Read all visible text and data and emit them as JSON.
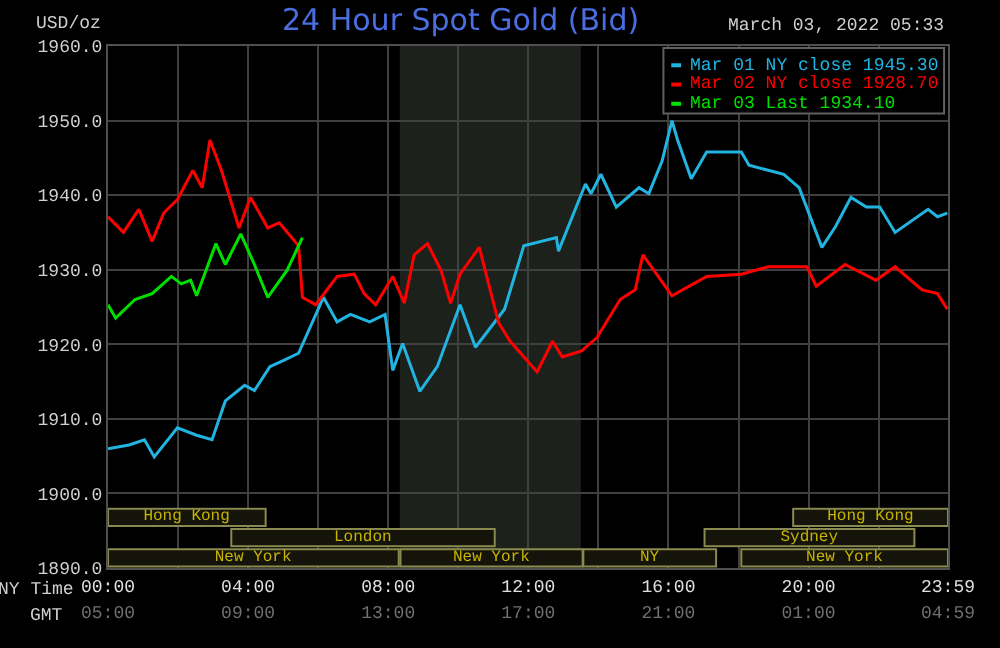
{
  "chart_data": [
    {
      "type": "line",
      "title": "24 Hour Spot Gold (Bid)",
      "subtitle": "March 03, 2022 05:33",
      "ylabel": "USD/oz",
      "xlabel": "NY Time",
      "x2label": "GMT",
      "xlim": [
        0,
        23.98
      ],
      "ylim": [
        1890,
        1960
      ],
      "xticks": [
        {
          "value": 0,
          "label": "00:00"
        },
        {
          "value": 2,
          "label": null
        },
        {
          "value": 4,
          "label": "04:00"
        },
        {
          "value": 6,
          "label": null
        },
        {
          "value": 8,
          "label": "08:00"
        },
        {
          "value": 10,
          "label": null
        },
        {
          "value": 12,
          "label": "12:00"
        },
        {
          "value": 14,
          "label": null
        },
        {
          "value": 16,
          "label": "16:00"
        },
        {
          "value": 18,
          "label": null
        },
        {
          "value": 20,
          "label": "20:00"
        },
        {
          "value": 22,
          "label": null
        },
        {
          "value": 23.98,
          "label": "23:59"
        }
      ],
      "x2lim": [
        "2022-03-03T05:00",
        "2022-03-04T04:59"
      ],
      "x2ticks": [
        {
          "value": "2022-03-03T05:00",
          "label": "05:00"
        },
        {
          "value": "2022-03-03T09:00",
          "label": "09:00"
        },
        {
          "value": "2022-03-03T13:00",
          "label": "13:00"
        },
        {
          "value": "2022-03-03T17:00",
          "label": "17:00"
        },
        {
          "value": "2022-03-03T21:00",
          "label": "21:00"
        },
        {
          "value": "2022-03-04T01:00",
          "label": "01:00"
        },
        {
          "value": "2022-03-04T04:59",
          "label": "04:59"
        }
      ],
      "yticks": [
        {
          "value": 1890,
          "label": "1890.0"
        },
        {
          "value": 1900,
          "label": "1900.0"
        },
        {
          "value": 1910,
          "label": "1910.0"
        },
        {
          "value": 1920,
          "label": "1920.0"
        },
        {
          "value": 1930,
          "label": "1930.0"
        },
        {
          "value": 1940,
          "label": "1940.0"
        },
        {
          "value": 1950,
          "label": "1950.0"
        },
        {
          "value": 1960,
          "label": "1960.0"
        }
      ],
      "grid": true,
      "legend": "top right",
      "marker": "none",
      "line_style": "solid",
      "bands": [
        {
          "axis": "x",
          "from": 8.33,
          "to": 13.5,
          "color": "#1c211c"
        }
      ],
      "series": [
        {
          "name": "Mar 01 NY close 1945.30",
          "color": "#22b4e0",
          "x": [
            0,
            0.6,
            1.04,
            1.32,
            1.98,
            2.53,
            2.97,
            3.35,
            3.9,
            4.18,
            4.62,
            5.0,
            5.44,
            6.15,
            6.54,
            6.92,
            7.47,
            7.91,
            8.13,
            8.41,
            8.9,
            9.4,
            10.05,
            10.49,
            11.32,
            11.87,
            12.8,
            12.86,
            13.63,
            13.79,
            14.07,
            14.51,
            15.16,
            15.44,
            15.82,
            16.1,
            16.26,
            16.65,
            17.09,
            18.08,
            18.3,
            19.29,
            19.73,
            20.38,
            20.77,
            21.21,
            21.65,
            22.03,
            22.47,
            23.41,
            23.68,
            23.96
          ],
          "values": [
            1906.0,
            1906.5,
            1907.2,
            1904.9,
            1908.8,
            1907.8,
            1907.2,
            1912.4,
            1914.5,
            1913.8,
            1917.0,
            1917.8,
            1918.8,
            1926.3,
            1923.0,
            1924.0,
            1923.0,
            1924.0,
            1916.5,
            1920.1,
            1913.7,
            1917.0,
            1925.3,
            1919.6,
            1924.7,
            1933.2,
            1934.3,
            1932.5,
            1941.5,
            1940.2,
            1942.8,
            1938.4,
            1941.0,
            1940.2,
            1944.6,
            1950.0,
            1947.4,
            1942.2,
            1945.8,
            1945.8,
            1944.0,
            1942.8,
            1941.0,
            1933.0,
            1935.8,
            1939.7,
            1938.4,
            1938.4,
            1935.0,
            1938.1,
            1937.1,
            1937.6
          ]
        },
        {
          "name": "Mar 02 NY close 1928.70",
          "color": "#ff0000",
          "x": [
            0,
            0.44,
            0.88,
            1.26,
            1.59,
            1.98,
            2.42,
            2.69,
            2.91,
            3.24,
            3.74,
            4.07,
            4.56,
            4.89,
            5.44,
            5.55,
            5.93,
            6.54,
            7.03,
            7.31,
            7.64,
            8.13,
            8.46,
            8.74,
            9.12,
            9.51,
            9.78,
            10.05,
            10.6,
            11.15,
            11.48,
            12.25,
            12.69,
            12.97,
            13.52,
            13.96,
            14.62,
            15.05,
            15.27,
            16.1,
            17.09,
            18.08,
            18.85,
            19.95,
            20.22,
            21.04,
            21.92,
            22.47,
            23.24,
            23.68,
            23.96
          ],
          "values": [
            1937.1,
            1935.0,
            1938.1,
            1933.8,
            1937.6,
            1939.4,
            1943.3,
            1941.0,
            1947.4,
            1943.3,
            1935.6,
            1939.7,
            1935.6,
            1936.3,
            1933.2,
            1926.3,
            1925.3,
            1929.1,
            1929.4,
            1926.8,
            1925.3,
            1929.1,
            1925.5,
            1932.0,
            1933.5,
            1929.9,
            1925.5,
            1929.4,
            1933.0,
            1922.9,
            1920.4,
            1916.3,
            1920.4,
            1918.3,
            1919.1,
            1920.9,
            1926.0,
            1927.3,
            1932.0,
            1926.5,
            1929.1,
            1929.4,
            1930.4,
            1930.4,
            1927.8,
            1930.7,
            1928.6,
            1930.4,
            1927.3,
            1926.8,
            1924.7
          ]
        },
        {
          "name": "Mar 03 Last 1934.10",
          "color": "#00e000",
          "x": [
            0,
            0.22,
            0.77,
            1.26,
            1.81,
            2.09,
            2.36,
            2.53,
            3.08,
            3.35,
            3.79,
            4.18,
            4.56,
            5.11,
            5.55
          ],
          "values": [
            1925.3,
            1923.5,
            1926.0,
            1926.8,
            1929.1,
            1928.1,
            1928.6,
            1926.5,
            1933.5,
            1930.7,
            1934.8,
            1930.7,
            1926.3,
            1929.9,
            1934.3
          ]
        }
      ]
    },
    {
      "type": "bar",
      "orientation": "horizontal",
      "categories": [
        null
      ],
      "xlim": [
        0,
        23.98
      ],
      "tick_labels": false,
      "series": [
        {
          "color": "#14140a",
          "base": [
            0
          ],
          "values": [
            4.5
          ],
          "value_labels": [
            "Hong Kong"
          ]
        },
        {
          "color": "#14140a",
          "base": [
            19.56
          ],
          "values": [
            4.42
          ],
          "value_labels": [
            "Hong Kong"
          ]
        }
      ]
    },
    {
      "type": "bar",
      "orientation": "horizontal",
      "categories": [
        null
      ],
      "xlim": [
        0,
        23.98
      ],
      "tick_labels": false,
      "series": [
        {
          "color": "#14140a",
          "base": [
            3.52
          ],
          "values": [
            7.52
          ],
          "value_labels": [
            "London"
          ]
        },
        {
          "color": "#14140a",
          "base": [
            17.03
          ],
          "values": [
            5.99
          ],
          "value_labels": [
            "Sydney"
          ]
        }
      ]
    },
    {
      "type": "bar",
      "orientation": "horizontal",
      "categories": [
        null
      ],
      "xlim": [
        0,
        23.98
      ],
      "tick_labels": false,
      "series": [
        {
          "color": "#14140a",
          "base": [
            0
          ],
          "values": [
            8.3
          ],
          "value_labels": [
            "New York"
          ]
        },
        {
          "color": "#14140a",
          "base": [
            8.35
          ],
          "values": [
            5.2
          ],
          "value_labels": [
            "New York"
          ]
        },
        {
          "color": "#14140a",
          "base": [
            13.57
          ],
          "values": [
            3.79
          ],
          "value_labels": [
            "NY"
          ]
        },
        {
          "color": "#14140a",
          "base": [
            18.08
          ],
          "values": [
            5.9
          ],
          "value_labels": [
            "New York"
          ]
        }
      ]
    }
  ]
}
